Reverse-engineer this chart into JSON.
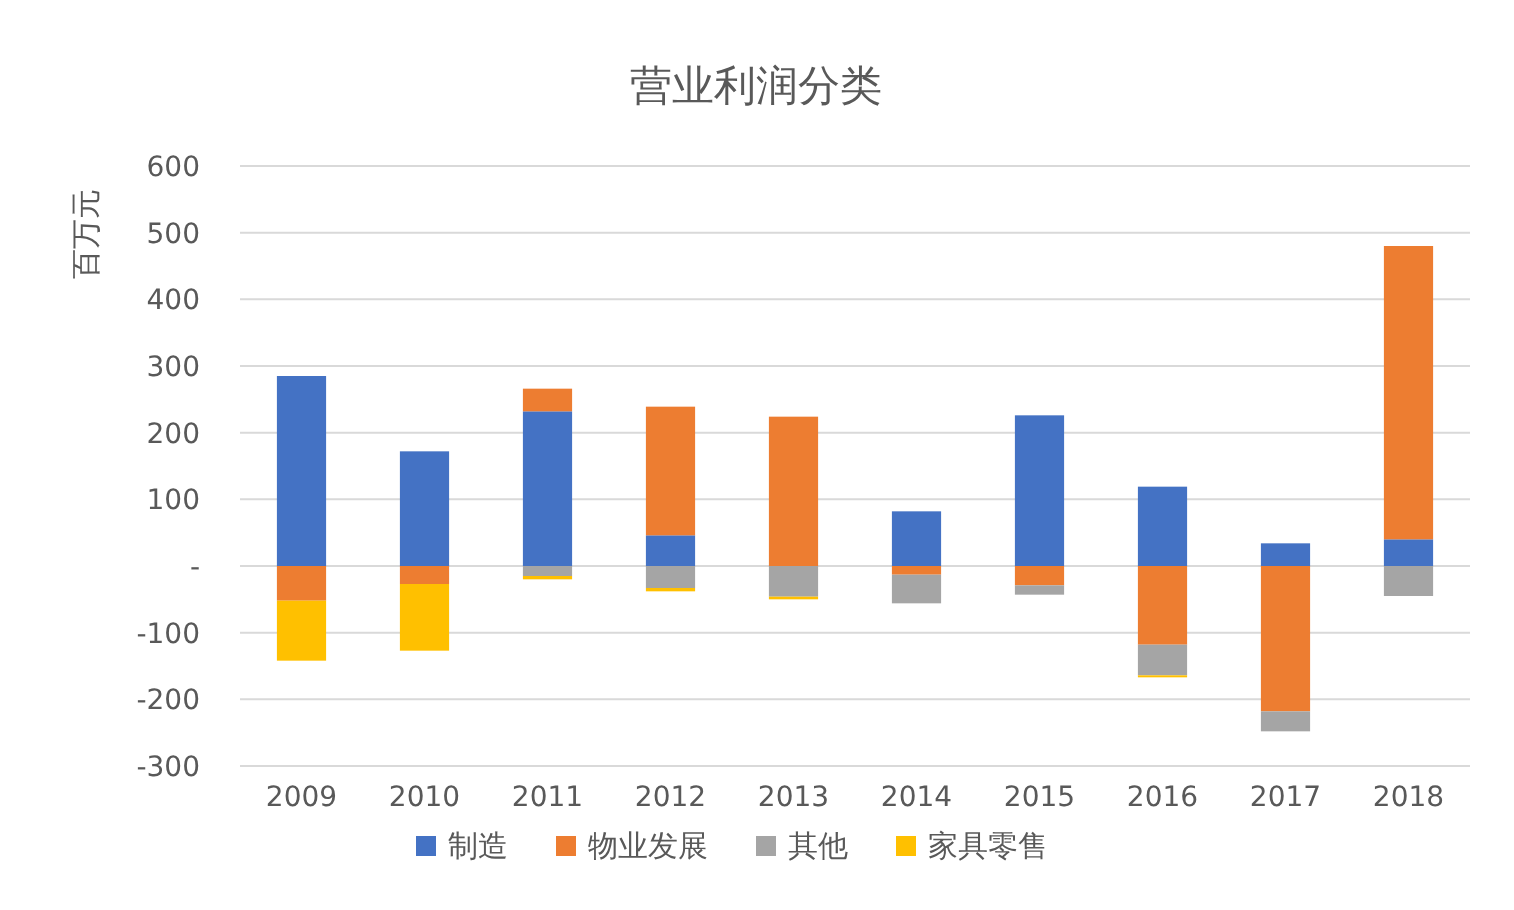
{
  "chart_data": {
    "type": "bar",
    "stacked": true,
    "title": "营业利润分类",
    "ylabel": "百万元",
    "categories": [
      "2009",
      "2010",
      "2011",
      "2012",
      "2013",
      "2014",
      "2015",
      "2016",
      "2017",
      "2018"
    ],
    "series": [
      {
        "name": "制造",
        "color": "#4472c4",
        "values": [
          285,
          172,
          232,
          46,
          0,
          82,
          226,
          119,
          34,
          40
        ]
      },
      {
        "name": "物业发展",
        "color": "#ed7d31",
        "values": [
          -52,
          -27,
          34,
          193,
          224,
          -13,
          -29,
          -118,
          -218,
          440
        ]
      },
      {
        "name": "其他",
        "color": "#a5a5a5",
        "values": [
          0,
          0,
          -15,
          -33,
          -46,
          -43,
          -14,
          -46,
          -30,
          -45
        ]
      },
      {
        "name": "家具零售",
        "color": "#ffc000",
        "values": [
          -90,
          -100,
          -5,
          -5,
          -4,
          0,
          0,
          -3,
          0,
          0
        ]
      }
    ],
    "ylim": [
      -300,
      600
    ],
    "yticks": [
      -300,
      -200,
      -100,
      {
        "value": 0,
        "label": "-"
      },
      100,
      200,
      300,
      400,
      500,
      600
    ],
    "grid": "y",
    "legend": "bottom"
  }
}
